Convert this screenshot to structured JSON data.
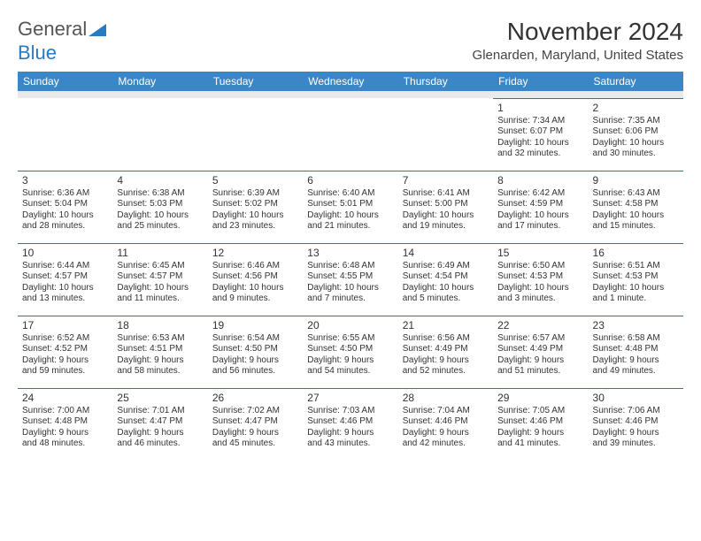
{
  "logo": {
    "word1": "General",
    "word2": "Blue"
  },
  "title": "November 2024",
  "location": "Glenarden, Maryland, United States",
  "colors": {
    "header_bg": "#3b86c6",
    "header_text": "#ffffff",
    "shade_row": "#e9e9e9",
    "cell_border": "#3b6fa0",
    "logo_gray": "#555555",
    "logo_blue": "#2a7ac0",
    "text": "#333333",
    "background": "#ffffff"
  },
  "day_headers": [
    "Sunday",
    "Monday",
    "Tuesday",
    "Wednesday",
    "Thursday",
    "Friday",
    "Saturday"
  ],
  "weeks": [
    [
      null,
      null,
      null,
      null,
      null,
      {
        "n": "1",
        "sr": "Sunrise: 7:34 AM",
        "ss": "Sunset: 6:07 PM",
        "d1": "Daylight: 10 hours",
        "d2": "and 32 minutes."
      },
      {
        "n": "2",
        "sr": "Sunrise: 7:35 AM",
        "ss": "Sunset: 6:06 PM",
        "d1": "Daylight: 10 hours",
        "d2": "and 30 minutes."
      }
    ],
    [
      {
        "n": "3",
        "sr": "Sunrise: 6:36 AM",
        "ss": "Sunset: 5:04 PM",
        "d1": "Daylight: 10 hours",
        "d2": "and 28 minutes."
      },
      {
        "n": "4",
        "sr": "Sunrise: 6:38 AM",
        "ss": "Sunset: 5:03 PM",
        "d1": "Daylight: 10 hours",
        "d2": "and 25 minutes."
      },
      {
        "n": "5",
        "sr": "Sunrise: 6:39 AM",
        "ss": "Sunset: 5:02 PM",
        "d1": "Daylight: 10 hours",
        "d2": "and 23 minutes."
      },
      {
        "n": "6",
        "sr": "Sunrise: 6:40 AM",
        "ss": "Sunset: 5:01 PM",
        "d1": "Daylight: 10 hours",
        "d2": "and 21 minutes."
      },
      {
        "n": "7",
        "sr": "Sunrise: 6:41 AM",
        "ss": "Sunset: 5:00 PM",
        "d1": "Daylight: 10 hours",
        "d2": "and 19 minutes."
      },
      {
        "n": "8",
        "sr": "Sunrise: 6:42 AM",
        "ss": "Sunset: 4:59 PM",
        "d1": "Daylight: 10 hours",
        "d2": "and 17 minutes."
      },
      {
        "n": "9",
        "sr": "Sunrise: 6:43 AM",
        "ss": "Sunset: 4:58 PM",
        "d1": "Daylight: 10 hours",
        "d2": "and 15 minutes."
      }
    ],
    [
      {
        "n": "10",
        "sr": "Sunrise: 6:44 AM",
        "ss": "Sunset: 4:57 PM",
        "d1": "Daylight: 10 hours",
        "d2": "and 13 minutes."
      },
      {
        "n": "11",
        "sr": "Sunrise: 6:45 AM",
        "ss": "Sunset: 4:57 PM",
        "d1": "Daylight: 10 hours",
        "d2": "and 11 minutes."
      },
      {
        "n": "12",
        "sr": "Sunrise: 6:46 AM",
        "ss": "Sunset: 4:56 PM",
        "d1": "Daylight: 10 hours",
        "d2": "and 9 minutes."
      },
      {
        "n": "13",
        "sr": "Sunrise: 6:48 AM",
        "ss": "Sunset: 4:55 PM",
        "d1": "Daylight: 10 hours",
        "d2": "and 7 minutes."
      },
      {
        "n": "14",
        "sr": "Sunrise: 6:49 AM",
        "ss": "Sunset: 4:54 PM",
        "d1": "Daylight: 10 hours",
        "d2": "and 5 minutes."
      },
      {
        "n": "15",
        "sr": "Sunrise: 6:50 AM",
        "ss": "Sunset: 4:53 PM",
        "d1": "Daylight: 10 hours",
        "d2": "and 3 minutes."
      },
      {
        "n": "16",
        "sr": "Sunrise: 6:51 AM",
        "ss": "Sunset: 4:53 PM",
        "d1": "Daylight: 10 hours",
        "d2": "and 1 minute."
      }
    ],
    [
      {
        "n": "17",
        "sr": "Sunrise: 6:52 AM",
        "ss": "Sunset: 4:52 PM",
        "d1": "Daylight: 9 hours",
        "d2": "and 59 minutes."
      },
      {
        "n": "18",
        "sr": "Sunrise: 6:53 AM",
        "ss": "Sunset: 4:51 PM",
        "d1": "Daylight: 9 hours",
        "d2": "and 58 minutes."
      },
      {
        "n": "19",
        "sr": "Sunrise: 6:54 AM",
        "ss": "Sunset: 4:50 PM",
        "d1": "Daylight: 9 hours",
        "d2": "and 56 minutes."
      },
      {
        "n": "20",
        "sr": "Sunrise: 6:55 AM",
        "ss": "Sunset: 4:50 PM",
        "d1": "Daylight: 9 hours",
        "d2": "and 54 minutes."
      },
      {
        "n": "21",
        "sr": "Sunrise: 6:56 AM",
        "ss": "Sunset: 4:49 PM",
        "d1": "Daylight: 9 hours",
        "d2": "and 52 minutes."
      },
      {
        "n": "22",
        "sr": "Sunrise: 6:57 AM",
        "ss": "Sunset: 4:49 PM",
        "d1": "Daylight: 9 hours",
        "d2": "and 51 minutes."
      },
      {
        "n": "23",
        "sr": "Sunrise: 6:58 AM",
        "ss": "Sunset: 4:48 PM",
        "d1": "Daylight: 9 hours",
        "d2": "and 49 minutes."
      }
    ],
    [
      {
        "n": "24",
        "sr": "Sunrise: 7:00 AM",
        "ss": "Sunset: 4:48 PM",
        "d1": "Daylight: 9 hours",
        "d2": "and 48 minutes."
      },
      {
        "n": "25",
        "sr": "Sunrise: 7:01 AM",
        "ss": "Sunset: 4:47 PM",
        "d1": "Daylight: 9 hours",
        "d2": "and 46 minutes."
      },
      {
        "n": "26",
        "sr": "Sunrise: 7:02 AM",
        "ss": "Sunset: 4:47 PM",
        "d1": "Daylight: 9 hours",
        "d2": "and 45 minutes."
      },
      {
        "n": "27",
        "sr": "Sunrise: 7:03 AM",
        "ss": "Sunset: 4:46 PM",
        "d1": "Daylight: 9 hours",
        "d2": "and 43 minutes."
      },
      {
        "n": "28",
        "sr": "Sunrise: 7:04 AM",
        "ss": "Sunset: 4:46 PM",
        "d1": "Daylight: 9 hours",
        "d2": "and 42 minutes."
      },
      {
        "n": "29",
        "sr": "Sunrise: 7:05 AM",
        "ss": "Sunset: 4:46 PM",
        "d1": "Daylight: 9 hours",
        "d2": "and 41 minutes."
      },
      {
        "n": "30",
        "sr": "Sunrise: 7:06 AM",
        "ss": "Sunset: 4:46 PM",
        "d1": "Daylight: 9 hours",
        "d2": "and 39 minutes."
      }
    ]
  ]
}
